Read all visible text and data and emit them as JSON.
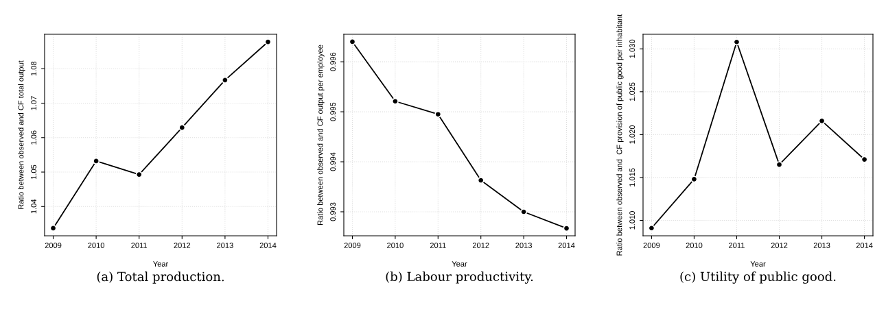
{
  "chart_data": [
    {
      "type": "line",
      "xlabel": "Year",
      "ylabel": "Ratio between observed and CF total output",
      "x": [
        2009,
        2010,
        2011,
        2012,
        2013,
        2014
      ],
      "series": [
        {
          "color": "#000000",
          "values": [
            1.0337,
            1.0532,
            1.0493,
            1.0629,
            1.0767,
            1.0878
          ]
        }
      ],
      "xlim": [
        2008.8,
        2014.2
      ],
      "xticks": [
        2009,
        2010,
        2011,
        2012,
        2013,
        2014
      ],
      "ylim": [
        1.0315,
        1.09
      ],
      "yticks": [
        1.04,
        1.05,
        1.06,
        1.07,
        1.08
      ],
      "grid": true,
      "marker": "circle",
      "line_style": "solid",
      "annotations": [
        "(a) Total production."
      ]
    },
    {
      "type": "line",
      "xlabel": "Year",
      "ylabel": "Ratio between observed and CF output per employee",
      "x": [
        2009,
        2010,
        2011,
        2012,
        2013,
        2014
      ],
      "series": [
        {
          "color": "#000000",
          "values": [
            0.9964,
            0.99521,
            0.99495,
            0.99363,
            0.993,
            0.99267
          ]
        }
      ],
      "xlim": [
        2008.8,
        2014.2
      ],
      "xticks": [
        2009,
        2010,
        2011,
        2012,
        2013,
        2014
      ],
      "ylim": [
        0.99252,
        0.99655
      ],
      "yticks": [
        0.993,
        0.994,
        0.995,
        0.996
      ],
      "grid": true,
      "marker": "circle",
      "line_style": "solid",
      "annotations": [
        "(b) Labour productivity."
      ]
    },
    {
      "type": "line",
      "xlabel": "Year",
      "ylabel": "Ratio between observed and  CF provision of public good per inhabitant",
      "x": [
        2009,
        2010,
        2011,
        2012,
        2013,
        2014
      ],
      "series": [
        {
          "color": "#000000",
          "values": [
            1.0091,
            1.0148,
            1.0308,
            1.0165,
            1.0216,
            1.0171
          ]
        }
      ],
      "xlim": [
        2008.8,
        2014.2
      ],
      "xticks": [
        2009,
        2010,
        2011,
        2012,
        2013,
        2014
      ],
      "ylim": [
        1.0082,
        1.0317
      ],
      "yticks": [
        {
          "value": 1.01,
          "label": "1.010"
        },
        {
          "value": 1.015,
          "label": "1.015"
        },
        {
          "value": 1.02,
          "label": "1.020"
        },
        {
          "value": 1.025,
          "label": "1.025"
        },
        {
          "value": 1.03,
          "label": "1.030"
        }
      ],
      "grid": true,
      "marker": "circle",
      "line_style": "solid",
      "annotations": [
        "(c) Utility of public good."
      ]
    }
  ]
}
